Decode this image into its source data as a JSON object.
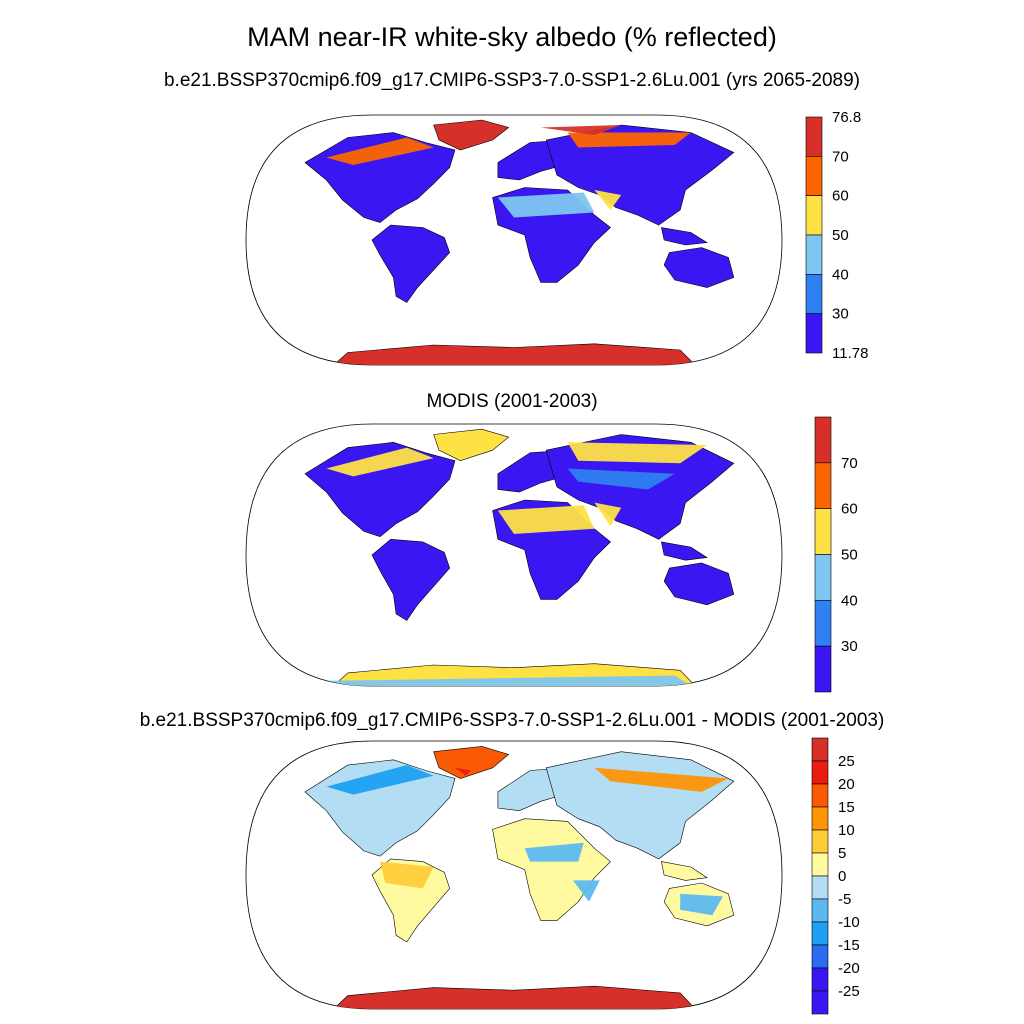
{
  "main_title": "MAM near-IR white-sky albedo (% reflected)",
  "panels": [
    {
      "title": "b.e21.BSSP370cmip6.f09_g17.CMIP6-SSP3-7.0-SSP1-2.6Lu.001 (yrs 2065-2089)"
    },
    {
      "title": "MODIS (2001-2003)"
    },
    {
      "title": "b.e21.BSSP370cmip6.f09_g17.CMIP6-SSP3-7.0-SSP1-2.6Lu.001 - MODIS (2001-2003)"
    }
  ],
  "colorbars": [
    {
      "labels": [
        "76.8",
        "70",
        "60",
        "50",
        "40",
        "30",
        "11.78"
      ],
      "colors": [
        "#d7302a",
        "#fd6500",
        "#fee244",
        "#7dc6ef",
        "#2f80f0",
        "#3a17f2"
      ]
    },
    {
      "labels": [
        "70",
        "60",
        "50",
        "40",
        "30"
      ],
      "colors": [
        "#d7302a",
        "#fd6500",
        "#fee244",
        "#7dc6ef",
        "#2f80f0",
        "#3a17f2"
      ]
    },
    {
      "labels": [
        "25",
        "20",
        "15",
        "10",
        "5",
        "0",
        "-5",
        "-10",
        "-15",
        "-20",
        "-25"
      ],
      "colors": [
        "#d7302a",
        "#ea1c0f",
        "#fb5a05",
        "#fe9406",
        "#fece3a",
        "#fffaa0",
        "#b3ddf3",
        "#5cb9ef",
        "#1ea0f3",
        "#2a6cf0",
        "#3a17f2",
        "#3a17f2"
      ]
    }
  ]
}
